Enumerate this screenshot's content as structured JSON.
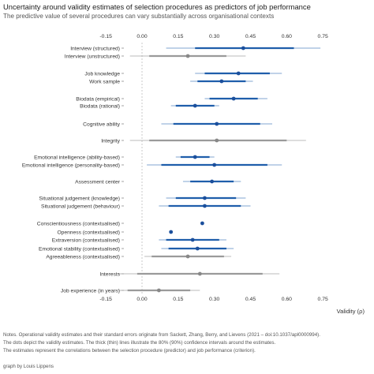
{
  "header": {
    "title": "Uncertainty around validity estimates of selection procedures as predictors of job performance",
    "subtitle": "The predictive value of several procedures can vary substantially across organisational contexts"
  },
  "notes": [
    "Notes. Operational validity estimates and their standard errors originate from Sackett, Zhang, Berry, and Lievens (2021 – doi:10.1037/apl0000994).",
    "The dots depict the validity estimates. The thick (thin) lines illustrate the 80% (90%) confidence intervals around the estimates.",
    "The estimates represent the correlations between the selection procedure (predictor) and job performance (criterion)."
  ],
  "credit": "graph by Louis Lippens",
  "colors": {
    "highlight": "#1f5eab",
    "highlight_dot": "#1b4f9c",
    "muted": "#9a9a9a",
    "muted_dot": "#888888",
    "zero_line": "#bbbbbb"
  },
  "chart_data": {
    "type": "scatter",
    "xlabel": "Validity (ρ)",
    "xlim": [
      -0.2,
      0.77
    ],
    "x_ticks": [
      "-0.15",
      "0.00",
      "0.15",
      "0.30",
      "0.45",
      "0.60",
      "0.75"
    ],
    "x_tick_values": [
      -0.15,
      0,
      0.15,
      0.3,
      0.45,
      0.6,
      0.75
    ],
    "zero_reference_line": 0,
    "grid": false,
    "rows": [
      {
        "label": "Interview (structured)",
        "estimate": 0.42,
        "ci80": [
          0.22,
          0.63
        ],
        "ci90": [
          0.1,
          0.74
        ],
        "muted": false
      },
      {
        "label": "Interview (unstructured)",
        "estimate": 0.19,
        "ci80": [
          0.03,
          0.35
        ],
        "ci90": [
          -0.05,
          0.43
        ],
        "muted": true
      },
      {
        "label": "Job knowledge",
        "estimate": 0.4,
        "ci80": [
          0.26,
          0.53
        ],
        "ci90": [
          0.22,
          0.58
        ],
        "muted": false
      },
      {
        "label": "Work sample",
        "estimate": 0.33,
        "ci80": [
          0.23,
          0.43
        ],
        "ci90": [
          0.2,
          0.46
        ],
        "muted": false
      },
      {
        "label": "Biodata (empirical)",
        "estimate": 0.38,
        "ci80": [
          0.28,
          0.48
        ],
        "ci90": [
          0.26,
          0.52
        ],
        "muted": false
      },
      {
        "label": "Biodata (rational)",
        "estimate": 0.22,
        "ci80": [
          0.14,
          0.3
        ],
        "ci90": [
          0.12,
          0.32
        ],
        "muted": false
      },
      {
        "label": "Cognitive ability",
        "estimate": 0.31,
        "ci80": [
          0.13,
          0.49
        ],
        "ci90": [
          0.08,
          0.54
        ],
        "muted": false
      },
      {
        "label": "Integrity",
        "estimate": 0.31,
        "ci80": [
          0.03,
          0.6
        ],
        "ci90": [
          -0.05,
          0.68
        ],
        "muted": true
      },
      {
        "label": "Emotional intelligence (ability-based)",
        "estimate": 0.22,
        "ci80": [
          0.16,
          0.28
        ],
        "ci90": [
          0.14,
          0.3
        ],
        "muted": false
      },
      {
        "label": "Emotional intelligence (personality-based)",
        "estimate": 0.3,
        "ci80": [
          0.08,
          0.52
        ],
        "ci90": [
          0.02,
          0.58
        ],
        "muted": false
      },
      {
        "label": "Assessment center",
        "estimate": 0.29,
        "ci80": [
          0.2,
          0.38
        ],
        "ci90": [
          0.17,
          0.41
        ],
        "muted": false
      },
      {
        "label": "Situational judgement (knowledge)",
        "estimate": 0.26,
        "ci80": [
          0.14,
          0.39
        ],
        "ci90": [
          0.1,
          0.43
        ],
        "muted": false
      },
      {
        "label": "Situational judgement (behaviour)",
        "estimate": 0.26,
        "ci80": [
          0.11,
          0.41
        ],
        "ci90": [
          0.07,
          0.45
        ],
        "muted": false
      },
      {
        "label": "Conscientiousness (contextualised)",
        "estimate": 0.25,
        "ci80": null,
        "ci90": null,
        "muted": false
      },
      {
        "label": "Openness (contextualised)",
        "estimate": 0.12,
        "ci80": null,
        "ci90": null,
        "muted": false
      },
      {
        "label": "Extraversion (contextualised)",
        "estimate": 0.21,
        "ci80": [
          0.1,
          0.32
        ],
        "ci90": [
          0.07,
          0.35
        ],
        "muted": false
      },
      {
        "label": "Emotional stability (contextualised)",
        "estimate": 0.23,
        "ci80": [
          0.11,
          0.35
        ],
        "ci90": [
          0.08,
          0.38
        ],
        "muted": false
      },
      {
        "label": "Agreeableness (contextualised)",
        "estimate": 0.19,
        "ci80": [
          0.04,
          0.34
        ],
        "ci90": [
          0.01,
          0.37
        ],
        "muted": true
      },
      {
        "label": "Interests",
        "estimate": 0.24,
        "ci80": [
          -0.02,
          0.5
        ],
        "ci90": [
          -0.1,
          0.57
        ],
        "muted": true
      },
      {
        "label": "Job experience (in years)",
        "estimate": 0.07,
        "ci80": [
          -0.06,
          0.2
        ],
        "ci90": [
          -0.1,
          0.24
        ],
        "muted": true
      }
    ]
  }
}
